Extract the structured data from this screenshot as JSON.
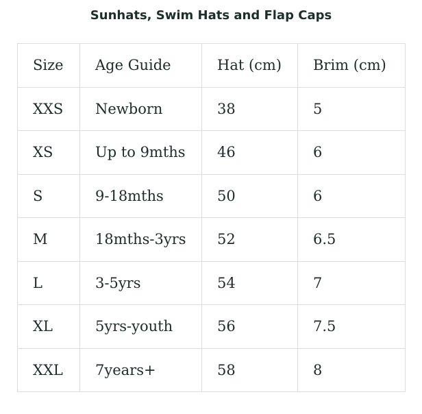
{
  "title": "Sunhats, Swim Hats and Flap Caps",
  "table": {
    "header": [
      "Size",
      "Age Guide",
      "Hat (cm)",
      "Brim (cm)"
    ],
    "rows": [
      [
        "XXS",
        "Newborn",
        "38",
        "5"
      ],
      [
        "XS",
        "Up to 9mths",
        "46",
        "6"
      ],
      [
        "S",
        "9-18mths",
        "50",
        "6"
      ],
      [
        "M",
        "18mths-3yrs",
        "52",
        "6.5"
      ],
      [
        "L",
        "3-5yrs",
        "54",
        "7"
      ],
      [
        "XL",
        "5yrs-youth",
        "56",
        "7.5"
      ],
      [
        "XXL",
        "7years+",
        "58",
        "8"
      ]
    ]
  }
}
